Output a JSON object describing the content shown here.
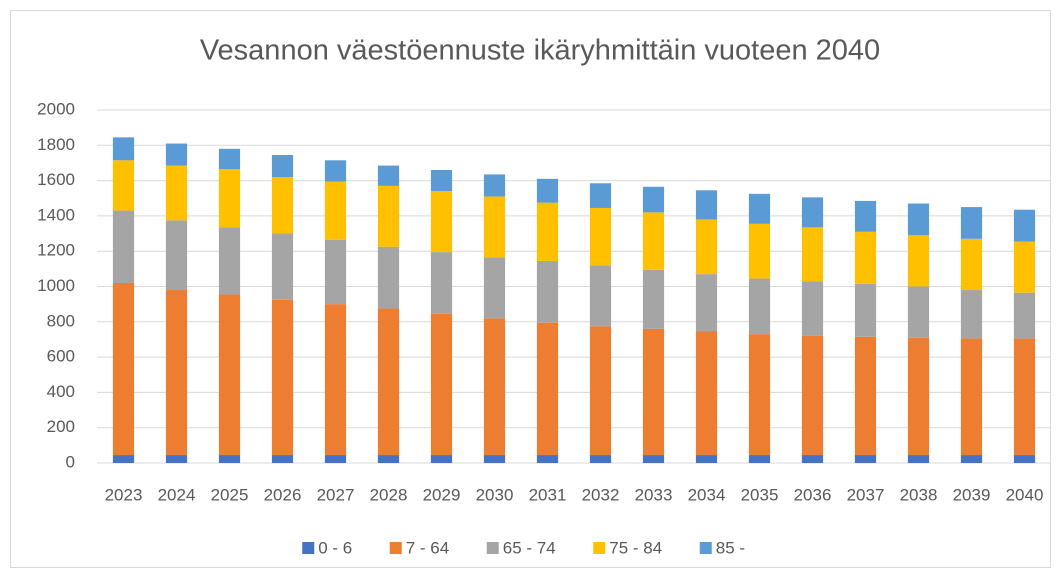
{
  "chart_data": {
    "type": "stacked_bar",
    "title": "Vesannon väestöennuste ikäryhmittäin vuoteen 2040",
    "categories": [
      "2023",
      "2024",
      "2025",
      "2026",
      "2027",
      "2028",
      "2029",
      "2030",
      "2031",
      "2032",
      "2033",
      "2034",
      "2035",
      "2036",
      "2037",
      "2038",
      "2039",
      "2040"
    ],
    "series": [
      {
        "name": "0 - 6",
        "color": "#4472c4",
        "values": [
          45,
          45,
          45,
          45,
          45,
          45,
          45,
          45,
          45,
          45,
          45,
          45,
          45,
          45,
          45,
          45,
          45,
          45
        ]
      },
      {
        "name": "7 - 64",
        "color": "#ed7d31",
        "values": [
          975,
          935,
          910,
          880,
          855,
          830,
          800,
          775,
          750,
          730,
          715,
          700,
          685,
          675,
          670,
          665,
          660,
          660
        ]
      },
      {
        "name": "65 - 74",
        "color": "#a5a5a5",
        "values": [
          410,
          395,
          380,
          375,
          365,
          350,
          350,
          345,
          350,
          345,
          335,
          325,
          315,
          310,
          300,
          290,
          275,
          260
        ]
      },
      {
        "name": "75 - 84",
        "color": "#ffc000",
        "values": [
          285,
          310,
          330,
          320,
          330,
          345,
          345,
          345,
          330,
          325,
          325,
          310,
          310,
          305,
          295,
          290,
          290,
          290
        ]
      },
      {
        "name": "85 -",
        "color": "#5b9bd5",
        "values": [
          130,
          125,
          115,
          125,
          120,
          115,
          120,
          125,
          135,
          140,
          145,
          165,
          170,
          170,
          175,
          180,
          180,
          180
        ]
      }
    ],
    "ylim": [
      0,
      2000
    ],
    "yticks": [
      0,
      200,
      400,
      600,
      800,
      1000,
      1200,
      1400,
      1600,
      1800,
      2000
    ],
    "grid": true,
    "legend": "bottom"
  }
}
